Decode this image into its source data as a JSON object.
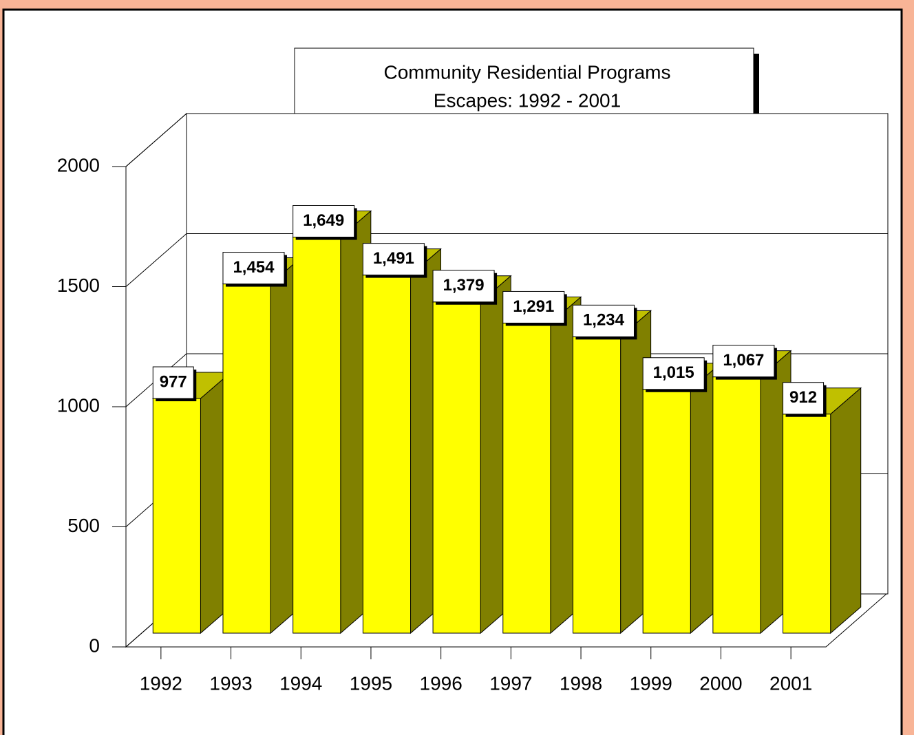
{
  "chart_data": {
    "type": "bar3d",
    "title": "Community Residential Programs",
    "subtitle": "Escapes: 1992 - 2001",
    "categories": [
      "1992",
      "1993",
      "1994",
      "1995",
      "1996",
      "1997",
      "1998",
      "1999",
      "2000",
      "2001"
    ],
    "values": [
      977,
      1454,
      1649,
      1491,
      1379,
      1291,
      1234,
      1015,
      1067,
      912
    ],
    "value_labels": [
      "977",
      "1,454",
      "1,649",
      "1,491",
      "1,379",
      "1,291",
      "1,234",
      "1,015",
      "1,067",
      "912"
    ],
    "color": "#ffff00",
    "ylim": [
      0,
      2000
    ],
    "yticks": [
      0,
      500,
      1000,
      1500,
      2000
    ],
    "grid": true
  }
}
